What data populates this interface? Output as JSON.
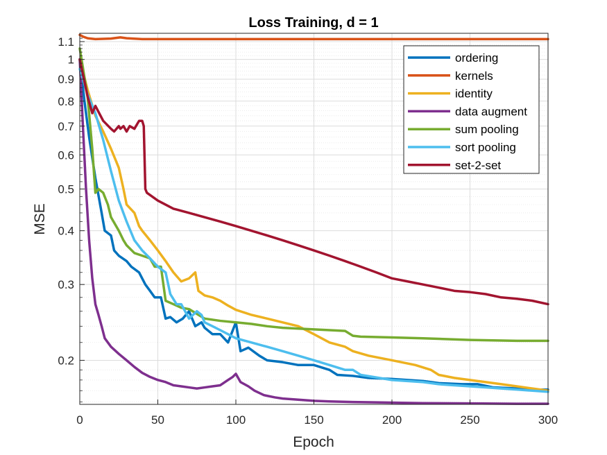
{
  "chart_data": {
    "type": "line",
    "title": "Loss Training, d = 1",
    "xlabel": "Epoch",
    "ylabel": "MSE",
    "xlim": [
      0,
      300
    ],
    "ylim": [
      0.158,
      1.15
    ],
    "yscale": "log",
    "grid": true,
    "x_ticks": [
      0,
      50,
      100,
      150,
      200,
      250,
      300
    ],
    "x_tick_labels": [
      "0",
      "50",
      "100",
      "150",
      "200",
      "250",
      "300"
    ],
    "y_ticks": [
      0.2,
      0.3,
      0.4,
      0.5,
      0.6,
      0.7,
      0.8,
      0.9,
      1,
      1.1
    ],
    "y_tick_labels": [
      "0.2",
      "0.3",
      "0.4",
      "0.5",
      "0.6",
      "0.7",
      "0.8",
      "0.9",
      "1",
      "1.1"
    ],
    "legend_position": "top-right",
    "series": [
      {
        "name": "ordering",
        "color": "#0072BD",
        "x": [
          0,
          3,
          6,
          10,
          14,
          16,
          20,
          22,
          25,
          30,
          33,
          38,
          42,
          45,
          48,
          52,
          55,
          58,
          62,
          66,
          70,
          74,
          78,
          80,
          85,
          90,
          95,
          100,
          103,
          108,
          115,
          120,
          130,
          140,
          150,
          160,
          165,
          175,
          185,
          200,
          210,
          220,
          230,
          245,
          255,
          265,
          280,
          290,
          300
        ],
        "y": [
          1.0,
          0.8,
          0.66,
          0.53,
          0.44,
          0.4,
          0.39,
          0.36,
          0.35,
          0.34,
          0.33,
          0.32,
          0.3,
          0.29,
          0.28,
          0.28,
          0.25,
          0.252,
          0.245,
          0.25,
          0.26,
          0.24,
          0.245,
          0.238,
          0.23,
          0.23,
          0.22,
          0.245,
          0.21,
          0.214,
          0.205,
          0.2,
          0.198,
          0.195,
          0.195,
          0.19,
          0.185,
          0.184,
          0.182,
          0.181,
          0.18,
          0.179,
          0.177,
          0.176,
          0.176,
          0.173,
          0.172,
          0.171,
          0.171
        ]
      },
      {
        "name": "kernels",
        "color": "#D95319",
        "x": [
          0,
          2,
          5,
          10,
          20,
          26,
          30,
          34,
          40,
          50,
          100,
          150,
          200,
          250,
          300
        ],
        "y": [
          1.14,
          1.13,
          1.12,
          1.115,
          1.118,
          1.125,
          1.12,
          1.118,
          1.115,
          1.115,
          1.115,
          1.115,
          1.115,
          1.115,
          1.115
        ]
      },
      {
        "name": "identity",
        "color": "#EDB120",
        "x": [
          0,
          5,
          10,
          15,
          20,
          25,
          28,
          30,
          35,
          38,
          40,
          45,
          50,
          55,
          60,
          65,
          70,
          74,
          76,
          80,
          85,
          90,
          95,
          100,
          110,
          120,
          130,
          140,
          150,
          160,
          170,
          175,
          185,
          200,
          215,
          225,
          230,
          240,
          250,
          260,
          270,
          280,
          290,
          300
        ],
        "y": [
          1.0,
          0.85,
          0.74,
          0.68,
          0.62,
          0.56,
          0.5,
          0.46,
          0.44,
          0.41,
          0.4,
          0.38,
          0.36,
          0.34,
          0.32,
          0.305,
          0.31,
          0.32,
          0.29,
          0.283,
          0.28,
          0.275,
          0.268,
          0.262,
          0.255,
          0.25,
          0.245,
          0.24,
          0.23,
          0.22,
          0.215,
          0.21,
          0.205,
          0.2,
          0.195,
          0.19,
          0.185,
          0.182,
          0.18,
          0.178,
          0.176,
          0.174,
          0.172,
          0.17
        ]
      },
      {
        "name": "data augment",
        "color": "#7E2F8E",
        "x": [
          0,
          2,
          4,
          6,
          8,
          10,
          12,
          14,
          16,
          20,
          25,
          30,
          35,
          40,
          45,
          50,
          55,
          60,
          65,
          70,
          75,
          80,
          85,
          90,
          95,
          98,
          100,
          103,
          108,
          112,
          118,
          125,
          130,
          140,
          150,
          160,
          175,
          190,
          200,
          220,
          250,
          280,
          300
        ],
        "y": [
          1.0,
          0.7,
          0.5,
          0.38,
          0.31,
          0.27,
          0.255,
          0.24,
          0.225,
          0.215,
          0.207,
          0.2,
          0.193,
          0.187,
          0.183,
          0.18,
          0.178,
          0.175,
          0.174,
          0.173,
          0.172,
          0.173,
          0.174,
          0.175,
          0.18,
          0.183,
          0.186,
          0.178,
          0.174,
          0.17,
          0.166,
          0.164,
          0.163,
          0.162,
          0.161,
          0.1605,
          0.16,
          0.1597,
          0.1595,
          0.159,
          0.1588,
          0.1585,
          0.1585
        ]
      },
      {
        "name": "sum pooling",
        "color": "#77AC30",
        "x": [
          0,
          5,
          8,
          10,
          12,
          15,
          18,
          20,
          25,
          28,
          30,
          35,
          40,
          45,
          48,
          52,
          55,
          60,
          65,
          70,
          80,
          90,
          100,
          110,
          120,
          130,
          150,
          170,
          175,
          180,
          200,
          220,
          250,
          280,
          300
        ],
        "y": [
          1.06,
          0.82,
          0.62,
          0.49,
          0.5,
          0.49,
          0.46,
          0.43,
          0.4,
          0.38,
          0.37,
          0.355,
          0.35,
          0.345,
          0.33,
          0.33,
          0.275,
          0.27,
          0.265,
          0.263,
          0.25,
          0.247,
          0.245,
          0.243,
          0.24,
          0.238,
          0.236,
          0.234,
          0.228,
          0.227,
          0.226,
          0.225,
          0.223,
          0.222,
          0.222
        ]
      },
      {
        "name": "sort pooling",
        "color": "#4DBEEE",
        "x": [
          0,
          5,
          10,
          15,
          20,
          25,
          30,
          35,
          40,
          45,
          50,
          55,
          58,
          62,
          65,
          70,
          75,
          78,
          80,
          85,
          90,
          95,
          100,
          110,
          120,
          130,
          140,
          150,
          160,
          170,
          175,
          180,
          200,
          220,
          230,
          240,
          250,
          260,
          270,
          280,
          290,
          300
        ],
        "y": [
          0.95,
          0.83,
          0.75,
          0.65,
          0.55,
          0.47,
          0.42,
          0.38,
          0.36,
          0.345,
          0.33,
          0.32,
          0.285,
          0.27,
          0.27,
          0.25,
          0.26,
          0.255,
          0.245,
          0.24,
          0.235,
          0.23,
          0.225,
          0.22,
          0.215,
          0.21,
          0.205,
          0.2,
          0.195,
          0.19,
          0.19,
          0.185,
          0.18,
          0.178,
          0.176,
          0.175,
          0.174,
          0.173,
          0.172,
          0.171,
          0.17,
          0.169
        ]
      },
      {
        "name": "set-2-set",
        "color": "#A2142F",
        "x": [
          0,
          5,
          8,
          10,
          15,
          20,
          22,
          25,
          26,
          28,
          30,
          32,
          35,
          37,
          38,
          40,
          41,
          42,
          43,
          50,
          60,
          70,
          80,
          90,
          100,
          110,
          120,
          130,
          140,
          150,
          160,
          170,
          180,
          190,
          200,
          210,
          220,
          230,
          240,
          250,
          260,
          270,
          280,
          290,
          300
        ],
        "y": [
          1.0,
          0.82,
          0.75,
          0.78,
          0.72,
          0.69,
          0.68,
          0.7,
          0.69,
          0.7,
          0.68,
          0.7,
          0.69,
          0.71,
          0.72,
          0.72,
          0.7,
          0.5,
          0.49,
          0.47,
          0.45,
          0.44,
          0.43,
          0.42,
          0.41,
          0.4,
          0.39,
          0.38,
          0.37,
          0.36,
          0.35,
          0.34,
          0.33,
          0.32,
          0.31,
          0.305,
          0.3,
          0.295,
          0.29,
          0.288,
          0.285,
          0.28,
          0.278,
          0.275,
          0.27
        ]
      }
    ]
  }
}
